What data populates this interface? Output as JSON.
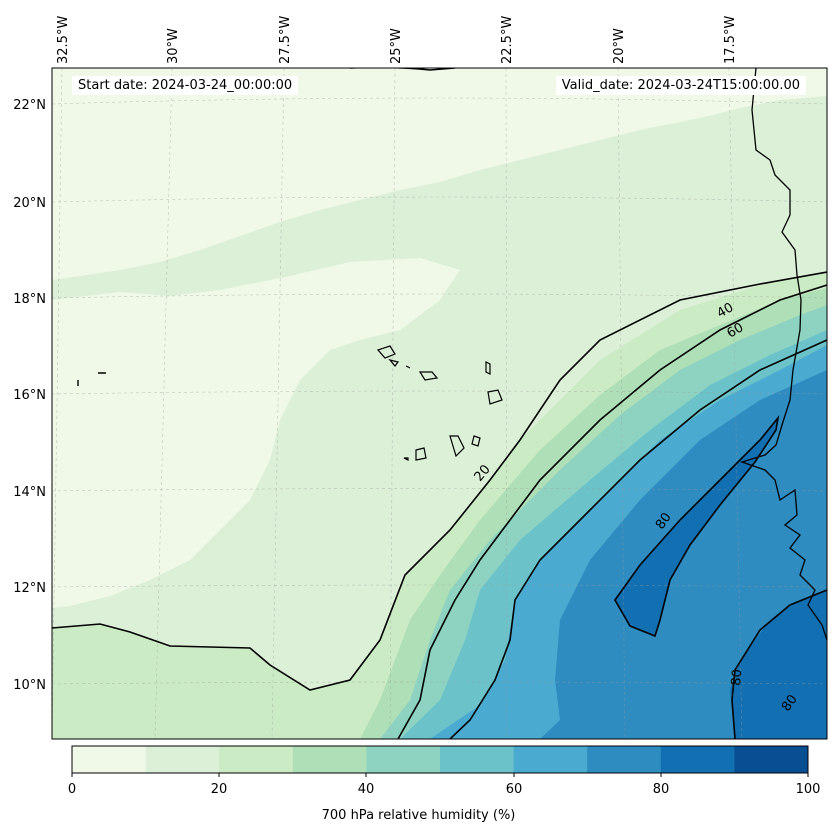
{
  "header": {
    "start_date": "Start date: 2024-03-24_00:00:00",
    "valid_date": "Valid_date: 2024-03-24T15:00:00.00"
  },
  "map": {
    "lon_labels": [
      "32.5°W",
      "30°W",
      "27.5°W",
      "25°W",
      "22.5°W",
      "20°W",
      "17.5°W"
    ],
    "lat_labels": [
      "22°N",
      "20°N",
      "18°N",
      "16°N",
      "14°N",
      "12°N",
      "10°N"
    ],
    "contour_labels": [
      "20",
      "40",
      "60",
      "80",
      "80",
      "80"
    ]
  },
  "colorbar": {
    "title": "700 hPa relative humidity (%)",
    "ticks": [
      "0",
      "20",
      "40",
      "60",
      "80",
      "100"
    ],
    "colors": [
      "#f0f9e8",
      "#dcf0d8",
      "#cbebc5",
      "#afdfb6",
      "#8ed3c1",
      "#6bc3c9",
      "#4aaad0",
      "#2e8cc0",
      "#1270b2",
      "#084e93"
    ]
  }
}
